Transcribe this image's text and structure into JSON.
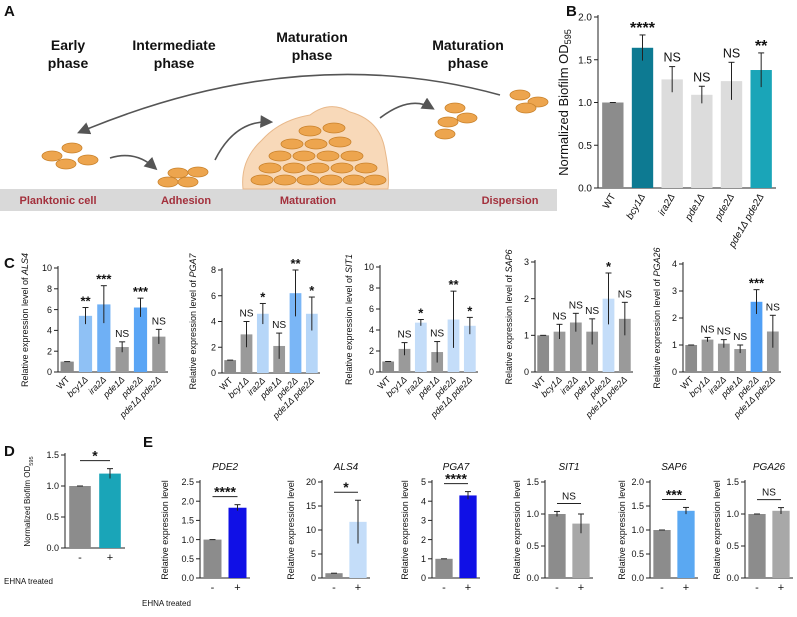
{
  "diagram": {
    "panel": "A",
    "stages": [
      {
        "title": [
          "Early",
          "phase"
        ],
        "label": "Planktonic cell"
      },
      {
        "title": [
          "Intermediate",
          "phase"
        ],
        "label": "Adhesion"
      },
      {
        "title": [
          "Maturation",
          "phase"
        ],
        "label": "Maturation"
      },
      {
        "title": [
          "Maturation",
          "phase"
        ],
        "label": "Dispersion"
      }
    ]
  },
  "chart_data": [
    {
      "type": "bar",
      "panel": "B",
      "ylabel": "Normalized Biofilm OD",
      "ylabel_subscript": "595",
      "categories": [
        "WT",
        "bcy1Δ",
        "ira2Δ",
        "pde1Δ",
        "pde2Δ",
        "pde1Δ pde2Δ"
      ],
      "values": [
        1.0,
        1.64,
        1.27,
        1.09,
        1.25,
        1.38
      ],
      "errors": [
        0,
        0.15,
        0.15,
        0.1,
        0.22,
        0.2
      ],
      "annotations": [
        null,
        "****",
        "NS",
        "NS",
        "NS",
        "**"
      ],
      "colors": [
        "#8c8c8c",
        "#0d7a92",
        "#dcdcdc",
        "#dcdcdc",
        "#dcdcdc",
        "#1aa5b8"
      ],
      "ylim": [
        0,
        2
      ],
      "yticks": [
        {
          "value": 0,
          "label": "0.0"
        },
        0.5,
        {
          "value": 1,
          "label": "1.0"
        },
        1.5,
        {
          "value": 2,
          "label": "2.0"
        }
      ]
    },
    {
      "type": "bar",
      "panel": "C",
      "ylabel": "Relative expression level of",
      "gene": "ALS4",
      "categories": [
        "WT",
        "bcy1Δ",
        "ira2Δ",
        "pde1Δ",
        "pde2Δ",
        "pde1Δ pde2Δ"
      ],
      "values": [
        1.0,
        5.4,
        6.5,
        2.4,
        6.2,
        3.4
      ],
      "errors": [
        0,
        0.8,
        1.8,
        0.5,
        0.9,
        0.7
      ],
      "annotations": [
        null,
        "**",
        "***",
        "NS",
        "***",
        "NS"
      ],
      "colors": [
        "#8c8c8c",
        "#8fc1f5",
        "#6fb0f5",
        "#9a9a9a",
        "#5aa5f5",
        "#9a9a9a"
      ],
      "ylim": [
        0,
        10
      ],
      "yticks": [
        0,
        2,
        4,
        6,
        8,
        10
      ]
    },
    {
      "type": "bar",
      "ylabel": "Relative expression level of",
      "gene": "PGA7",
      "categories": [
        "WT",
        "bcy1Δ",
        "ira2Δ",
        "pde1Δ",
        "pde2Δ",
        "pde1Δ pde2Δ"
      ],
      "values": [
        1.0,
        3.0,
        4.6,
        2.1,
        6.2,
        4.6
      ],
      "errors": [
        0,
        1.0,
        0.8,
        1.0,
        1.8,
        1.3
      ],
      "annotations": [
        null,
        "NS",
        "*",
        "NS",
        "**",
        "*"
      ],
      "colors": [
        "#8c8c8c",
        "#9a9a9a",
        "#b6d6f8",
        "#9a9a9a",
        "#7ab6f6",
        "#b6d6f8"
      ],
      "ylim": [
        0,
        8
      ],
      "yticks": [
        0,
        2,
        4,
        6,
        8
      ]
    },
    {
      "type": "bar",
      "ylabel": "Relative expression level of",
      "gene": "SIT1",
      "categories": [
        "WT",
        "bcy1Δ",
        "ira2Δ",
        "pde1Δ",
        "pde2Δ",
        "pde1Δ pde2Δ"
      ],
      "values": [
        1.0,
        2.2,
        4.7,
        1.9,
        5.0,
        4.4
      ],
      "errors": [
        0,
        0.6,
        0.3,
        1.0,
        2.7,
        0.8
      ],
      "annotations": [
        null,
        "NS",
        "*",
        "NS",
        "**",
        "*"
      ],
      "colors": [
        "#8c8c8c",
        "#9a9a9a",
        "#c4ddf9",
        "#9a9a9a",
        "#c4ddf9",
        "#c4ddf9"
      ],
      "ylim": [
        0,
        10
      ],
      "yticks": [
        0,
        2,
        4,
        6,
        8,
        10
      ]
    },
    {
      "type": "bar",
      "ylabel": "Relative expression level of",
      "gene": "SAP6",
      "categories": [
        "WT",
        "bcy1Δ",
        "ira2Δ",
        "pde1Δ",
        "pde2Δ",
        "pde1Δ pde2Δ"
      ],
      "values": [
        1.0,
        1.1,
        1.35,
        1.1,
        2.0,
        1.45
      ],
      "errors": [
        0,
        0.2,
        0.25,
        0.35,
        0.7,
        0.45
      ],
      "annotations": [
        null,
        "NS",
        "NS",
        "NS",
        "*",
        "NS"
      ],
      "colors": [
        "#8c8c8c",
        "#9a9a9a",
        "#9a9a9a",
        "#9a9a9a",
        "#c4ddf9",
        "#9a9a9a"
      ],
      "ylim": [
        0,
        3
      ],
      "yticks": [
        0,
        1,
        2,
        3
      ]
    },
    {
      "type": "bar",
      "ylabel": "Relative expression level of",
      "gene": "PGA26",
      "categories": [
        "WT",
        "bcy1Δ",
        "ira2Δ",
        "pde1Δ",
        "pde2Δ",
        "pde1Δ pde2Δ"
      ],
      "values": [
        1.0,
        1.2,
        1.05,
        0.85,
        2.6,
        1.5
      ],
      "errors": [
        0,
        0.08,
        0.15,
        0.15,
        0.45,
        0.6
      ],
      "annotations": [
        null,
        "NS",
        "NS",
        "NS",
        "***",
        "NS"
      ],
      "colors": [
        "#8c8c8c",
        "#9a9a9a",
        "#9a9a9a",
        "#9a9a9a",
        "#4f9ff5",
        "#9a9a9a"
      ],
      "ylim": [
        0,
        4
      ],
      "yticks": [
        0,
        1,
        2,
        3,
        4
      ]
    },
    {
      "type": "bar",
      "panel": "D",
      "ylabel": "Normalized Biofilm OD",
      "ylabel_subscript": "595",
      "xlabel": "EHNA treated",
      "categories": [
        "-",
        "+"
      ],
      "values": [
        1.0,
        1.2
      ],
      "errors": [
        0,
        0.08
      ],
      "annotation": "*",
      "colors": [
        "#8c8c8c",
        "#1aa5b8"
      ],
      "ylim": [
        0,
        1.5
      ],
      "yticks": [
        {
          "value": 0,
          "label": "0.0"
        },
        0.5,
        {
          "value": 1,
          "label": "1.0"
        },
        1.5
      ]
    },
    {
      "type": "bar",
      "panel": "E",
      "title": "PDE2",
      "ylabel": "Relative expression level",
      "xlabel": "EHNA treated",
      "categories": [
        "-",
        "+"
      ],
      "values": [
        1.0,
        1.83
      ],
      "errors": [
        0,
        0.08
      ],
      "annotation": "****",
      "colors": [
        "#8c8c8c",
        "#1010e6"
      ],
      "ylim": [
        0,
        2.5
      ],
      "yticks": [
        {
          "value": 0,
          "label": "0.0"
        },
        0.5,
        {
          "value": 1,
          "label": "1.0"
        },
        1.5,
        {
          "value": 2,
          "label": "2.0"
        },
        2.5
      ]
    },
    {
      "type": "bar",
      "title": "ALS4",
      "ylabel": "Relative expression level",
      "categories": [
        "-",
        "+"
      ],
      "values": [
        1.0,
        11.7
      ],
      "errors": [
        0,
        4.5
      ],
      "annotation": "*",
      "colors": [
        "#8c8c8c",
        "#c4ddf9"
      ],
      "ylim": [
        0,
        20
      ],
      "yticks": [
        0,
        5,
        10,
        15,
        20
      ]
    },
    {
      "type": "bar",
      "title": "PGA7",
      "ylabel": "Relative expression level",
      "categories": [
        "-",
        "+"
      ],
      "values": [
        1.0,
        4.3
      ],
      "errors": [
        0,
        0.2
      ],
      "annotation": "****",
      "colors": [
        "#8c8c8c",
        "#1010e6"
      ],
      "ylim": [
        0,
        5
      ],
      "yticks": [
        0,
        1,
        2,
        3,
        4,
        5
      ]
    },
    {
      "type": "bar",
      "title": "SIT1",
      "ylabel": "Relative expression level",
      "categories": [
        "-",
        "+"
      ],
      "values": [
        1.0,
        0.85
      ],
      "errors": [
        0.04,
        0.15
      ],
      "annotation": "NS",
      "colors": [
        "#8c8c8c",
        "#a8a8a8"
      ],
      "ylim": [
        0,
        1.5
      ],
      "yticks": [
        {
          "value": 0,
          "label": "0.0"
        },
        0.5,
        {
          "value": 1,
          "label": "1.0"
        },
        1.5
      ]
    },
    {
      "type": "bar",
      "title": "SAP6",
      "ylabel": "Relative expression level",
      "categories": [
        "-",
        "+"
      ],
      "values": [
        1.0,
        1.4
      ],
      "errors": [
        0,
        0.07
      ],
      "annotation": "***",
      "colors": [
        "#8c8c8c",
        "#5aa8f2"
      ],
      "ylim": [
        0,
        2
      ],
      "yticks": [
        {
          "value": 0,
          "label": "0.0"
        },
        0.5,
        {
          "value": 1,
          "label": "1.0"
        },
        1.5,
        {
          "value": 2,
          "label": "2.0"
        }
      ]
    },
    {
      "type": "bar",
      "title": "PGA26",
      "ylabel": "Relative expression level",
      "categories": [
        "-",
        "+"
      ],
      "values": [
        1.0,
        1.05
      ],
      "errors": [
        0,
        0.05
      ],
      "annotation": "NS",
      "colors": [
        "#8c8c8c",
        "#a8a8a8"
      ],
      "ylim": [
        0,
        1.5
      ],
      "yticks": [
        {
          "value": 0,
          "label": "0.0"
        },
        0.5,
        {
          "value": 1,
          "label": "1.0"
        },
        1.5
      ]
    }
  ]
}
